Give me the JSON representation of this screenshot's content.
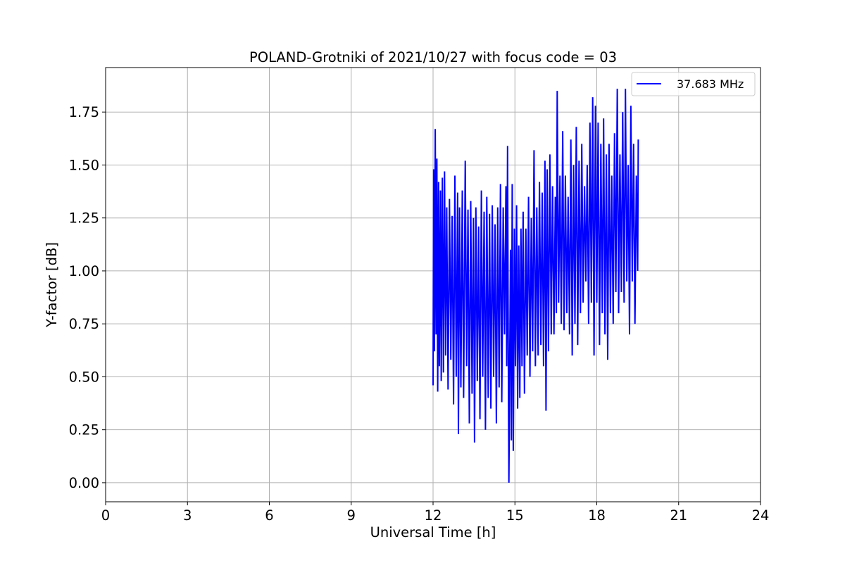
{
  "chart_data": {
    "type": "line",
    "title": "POLAND-Grotniki of 2021/10/27 with focus code = 03",
    "xlabel": "Universal Time [h]",
    "ylabel": "Y-factor [dB]",
    "xlim": [
      0,
      24
    ],
    "ylim": [
      -0.09,
      1.96
    ],
    "xticks": [
      0,
      3,
      6,
      9,
      12,
      15,
      18,
      21,
      24
    ],
    "xtick_labels": [
      "0",
      "3",
      "6",
      "9",
      "12",
      "15",
      "18",
      "21",
      "24"
    ],
    "yticks": [
      0.0,
      0.25,
      0.5,
      0.75,
      1.0,
      1.25,
      1.5,
      1.75
    ],
    "ytick_labels": [
      "0.00",
      "0.25",
      "0.50",
      "0.75",
      "1.00",
      "1.25",
      "1.50",
      "1.75"
    ],
    "grid": true,
    "legend": "top-right",
    "colors": {
      "series": "#0000ff"
    },
    "series": [
      {
        "name": "37.683 MHz",
        "color": "#0000ff",
        "points": [
          [
            12.0,
            0.46
          ],
          [
            12.02,
            1.48
          ],
          [
            12.05,
            0.62
          ],
          [
            12.08,
            1.67
          ],
          [
            12.11,
            0.7
          ],
          [
            12.14,
            1.53
          ],
          [
            12.17,
            0.43
          ],
          [
            12.2,
            1.42
          ],
          [
            12.23,
            0.55
          ],
          [
            12.27,
            1.38
          ],
          [
            12.3,
            0.48
          ],
          [
            12.34,
            1.44
          ],
          [
            12.38,
            0.52
          ],
          [
            12.42,
            1.47
          ],
          [
            12.46,
            0.6
          ],
          [
            12.5,
            1.3
          ],
          [
            12.55,
            0.44
          ],
          [
            12.6,
            1.34
          ],
          [
            12.65,
            0.58
          ],
          [
            12.7,
            1.26
          ],
          [
            12.75,
            0.37
          ],
          [
            12.8,
            1.45
          ],
          [
            12.85,
            0.5
          ],
          [
            12.9,
            1.37
          ],
          [
            12.93,
            0.23
          ],
          [
            12.97,
            1.3
          ],
          [
            13.02,
            0.45
          ],
          [
            13.07,
            1.38
          ],
          [
            13.12,
            0.4
          ],
          [
            13.18,
            1.52
          ],
          [
            13.23,
            0.55
          ],
          [
            13.28,
            1.29
          ],
          [
            13.33,
            0.28
          ],
          [
            13.38,
            1.33
          ],
          [
            13.43,
            0.42
          ],
          [
            13.48,
            1.25
          ],
          [
            13.52,
            0.19
          ],
          [
            13.57,
            1.3
          ],
          [
            13.62,
            0.48
          ],
          [
            13.67,
            1.21
          ],
          [
            13.72,
            0.3
          ],
          [
            13.77,
            1.38
          ],
          [
            13.82,
            0.5
          ],
          [
            13.87,
            1.28
          ],
          [
            13.92,
            0.25
          ],
          [
            13.97,
            1.35
          ],
          [
            14.02,
            0.4
          ],
          [
            14.07,
            1.27
          ],
          [
            14.12,
            0.35
          ],
          [
            14.17,
            1.31
          ],
          [
            14.22,
            0.5
          ],
          [
            14.27,
            1.22
          ],
          [
            14.32,
            0.28
          ],
          [
            14.37,
            1.3
          ],
          [
            14.42,
            0.45
          ],
          [
            14.47,
            1.41
          ],
          [
            14.52,
            0.38
          ],
          [
            14.57,
            1.3
          ],
          [
            14.62,
            0.7
          ],
          [
            14.67,
            1.4
          ],
          [
            14.7,
            0.55
          ],
          [
            14.73,
            1.59
          ],
          [
            14.76,
            0.48
          ],
          [
            14.78,
            0.0
          ],
          [
            14.81,
            0.6
          ],
          [
            14.84,
            1.1
          ],
          [
            14.87,
            0.2
          ],
          [
            14.9,
            1.41
          ],
          [
            14.94,
            0.15
          ],
          [
            14.98,
            1.2
          ],
          [
            15.02,
            0.55
          ],
          [
            15.06,
            1.31
          ],
          [
            15.1,
            0.35
          ],
          [
            15.14,
            1.12
          ],
          [
            15.18,
            0.4
          ],
          [
            15.22,
            1.2
          ],
          [
            15.26,
            0.55
          ],
          [
            15.3,
            1.28
          ],
          [
            15.35,
            0.42
          ],
          [
            15.4,
            1.2
          ],
          [
            15.45,
            0.6
          ],
          [
            15.5,
            1.35
          ],
          [
            15.55,
            0.5
          ],
          [
            15.6,
            1.25
          ],
          [
            15.65,
            0.62
          ],
          [
            15.7,
            1.57
          ],
          [
            15.75,
            0.55
          ],
          [
            15.8,
            1.3
          ],
          [
            15.85,
            0.6
          ],
          [
            15.9,
            1.42
          ],
          [
            15.95,
            0.65
          ],
          [
            16.0,
            1.37
          ],
          [
            16.05,
            0.55
          ],
          [
            16.1,
            1.52
          ],
          [
            16.14,
            0.34
          ],
          [
            16.18,
            1.48
          ],
          [
            16.23,
            0.62
          ],
          [
            16.28,
            1.55
          ],
          [
            16.33,
            0.7
          ],
          [
            16.38,
            1.4
          ],
          [
            16.43,
            0.7
          ],
          [
            16.48,
            1.35
          ],
          [
            16.52,
            0.8
          ],
          [
            16.55,
            1.85
          ],
          [
            16.6,
            0.85
          ],
          [
            16.65,
            1.45
          ],
          [
            16.7,
            0.75
          ],
          [
            16.75,
            1.66
          ],
          [
            16.8,
            0.72
          ],
          [
            16.85,
            1.45
          ],
          [
            16.9,
            0.8
          ],
          [
            16.95,
            1.35
          ],
          [
            17.0,
            0.7
          ],
          [
            17.05,
            1.62
          ],
          [
            17.1,
            0.6
          ],
          [
            17.15,
            1.5
          ],
          [
            17.2,
            0.75
          ],
          [
            17.25,
            1.68
          ],
          [
            17.3,
            0.65
          ],
          [
            17.35,
            1.52
          ],
          [
            17.4,
            0.8
          ],
          [
            17.45,
            1.6
          ],
          [
            17.5,
            0.85
          ],
          [
            17.55,
            1.4
          ],
          [
            17.6,
            0.95
          ],
          [
            17.65,
            1.5
          ],
          [
            17.7,
            0.75
          ],
          [
            17.75,
            1.7
          ],
          [
            17.8,
            0.85
          ],
          [
            17.85,
            1.82
          ],
          [
            17.9,
            0.6
          ],
          [
            17.95,
            1.78
          ],
          [
            18.0,
            0.85
          ],
          [
            18.05,
            1.7
          ],
          [
            18.1,
            0.65
          ],
          [
            18.15,
            1.6
          ],
          [
            18.2,
            0.8
          ],
          [
            18.25,
            1.72
          ],
          [
            18.3,
            0.7
          ],
          [
            18.35,
            1.55
          ],
          [
            18.4,
            0.58
          ],
          [
            18.45,
            1.6
          ],
          [
            18.5,
            0.8
          ],
          [
            18.55,
            1.45
          ],
          [
            18.6,
            0.75
          ],
          [
            18.65,
            1.65
          ],
          [
            18.7,
            0.9
          ],
          [
            18.75,
            1.86
          ],
          [
            18.8,
            0.8
          ],
          [
            18.85,
            1.55
          ],
          [
            18.9,
            0.9
          ],
          [
            18.95,
            1.75
          ],
          [
            19.0,
            0.85
          ],
          [
            19.05,
            1.86
          ],
          [
            19.1,
            0.95
          ],
          [
            19.15,
            1.5
          ],
          [
            19.2,
            0.7
          ],
          [
            19.25,
            1.78
          ],
          [
            19.3,
            0.95
          ],
          [
            19.35,
            1.6
          ],
          [
            19.4,
            0.75
          ],
          [
            19.45,
            1.45
          ],
          [
            19.5,
            1.0
          ],
          [
            19.52,
            1.62
          ]
        ]
      }
    ]
  }
}
